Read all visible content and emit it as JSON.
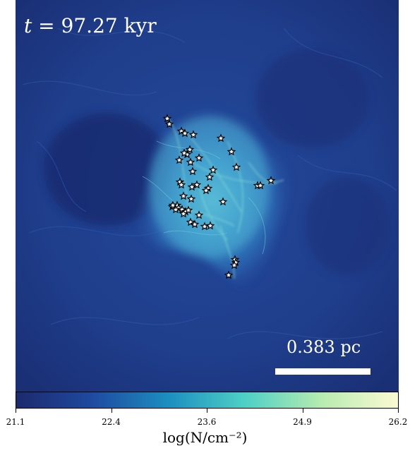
{
  "image": {
    "time_label": "t = 97.27 kyr",
    "time_var": "t",
    "time_value": "= 97.27 kyr",
    "scale_label": "0.383 pc",
    "colorbar": {
      "label": "log(N/cm⁻²)",
      "min": 21.1,
      "max": 26.2,
      "ticks": [
        "21.1",
        "22.4",
        "23.6",
        "24.9",
        "26.2"
      ],
      "colors": [
        "#1c2a6e",
        "#1f4aa0",
        "#1c8fc0",
        "#4fd0c6",
        "#b7ebb0",
        "#fcfad2"
      ]
    },
    "colors": {
      "background": "#1b3680",
      "filament": "#3fa8d6",
      "star_fill": "#ffffff",
      "star_stroke": "#000000"
    },
    "star_count": 47
  }
}
